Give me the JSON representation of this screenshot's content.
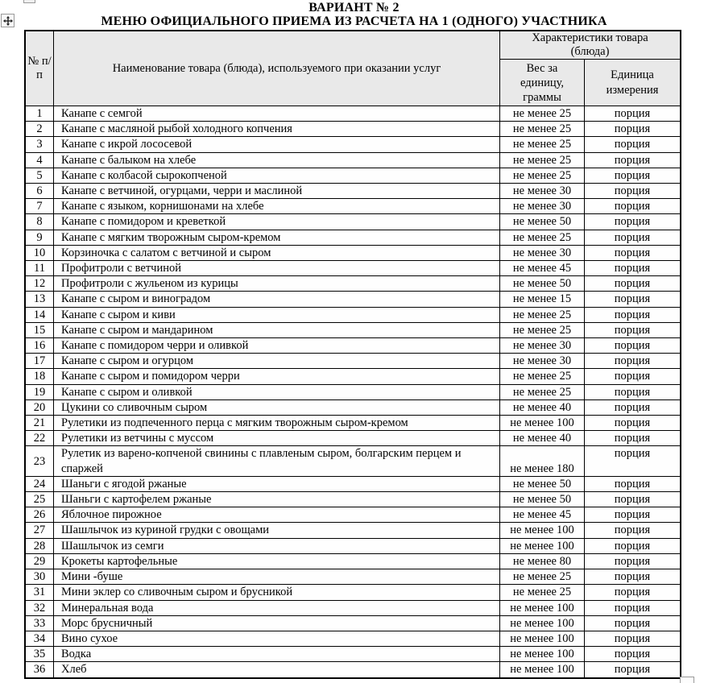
{
  "doc": {
    "title_line1": "ВАРИАНТ № 2",
    "title_line2": "МЕНЮ ОФИЦИАЛЬНОГО ПРИЕМА ИЗ РАСЧЕТА НА 1 (ОДНОГО) УЧАСТНИКА"
  },
  "icons": {
    "move_handle": "four-way-move-arrow",
    "resize_handle": "small-square"
  },
  "colors": {
    "header_bg": "#e9e9e9",
    "cell_bg": "#fefefe",
    "border": "#000000",
    "handle_border": "#999999",
    "text": "#000000",
    "page_bg": "#ffffff"
  },
  "table": {
    "header": {
      "number": "№ п/п",
      "name": "Наименование товара (блюда), используемого при оказании услуг",
      "group": "Характеристики товара (блюда)",
      "weight": "Вес за единицу, граммы",
      "unit": "Единица измерения"
    },
    "rows": [
      {
        "num": "1",
        "name": "Канапе с семгой",
        "weight": "не менее 25",
        "unit": "порция"
      },
      {
        "num": "2",
        "name": "Канапе с масляной рыбой холодного копчения",
        "weight": "не менее 25",
        "unit": "порция"
      },
      {
        "num": "3",
        "name": "Канапе с икрой лососевой",
        "weight": "не менее 25",
        "unit": "порция"
      },
      {
        "num": "4",
        "name": "Канапе с балыком на хлебе",
        "weight": "не менее 25",
        "unit": "порция"
      },
      {
        "num": "5",
        "name": "Канапе с колбасой сырокопченой",
        "weight": "не менее 25",
        "unit": "порция"
      },
      {
        "num": "6",
        "name": "Канапе с ветчиной, огурцами, черри и маслиной",
        "weight": "не менее 30",
        "unit": "порция"
      },
      {
        "num": "7",
        "name": "Канапе с языком, корнишонами на хлебе",
        "weight": "не менее 30",
        "unit": "порция"
      },
      {
        "num": "8",
        "name": "Канапе с помидором и креветкой",
        "weight": "не менее 50",
        "unit": "порция"
      },
      {
        "num": "9",
        "name": "Канапе с мягким творожным сыром-кремом",
        "weight": "не менее 25",
        "unit": "порция"
      },
      {
        "num": "10",
        "name": "Корзиночка с салатом с ветчиной и сыром",
        "weight": "не менее 30",
        "unit": "порция"
      },
      {
        "num": "11",
        "name": "Профитроли с ветчиной",
        "weight": "не менее 45",
        "unit": "порция"
      },
      {
        "num": "12",
        "name": "Профитроли с жульеном из курицы",
        "weight": "не менее 50",
        "unit": "порция"
      },
      {
        "num": "13",
        "name": "Канапе с сыром и виноградом",
        "weight": "не менее 15",
        "unit": "порция"
      },
      {
        "num": "14",
        "name": "Канапе с сыром и киви",
        "weight": "не менее 25",
        "unit": "порция"
      },
      {
        "num": "15",
        "name": "Канапе с сыром и мандарином",
        "weight": "не менее 25",
        "unit": "порция"
      },
      {
        "num": "16",
        "name": "Канапе с помидором черри и оливкой",
        "weight": "не менее 30",
        "unit": "порция"
      },
      {
        "num": "17",
        "name": "Канапе с сыром и огурцом",
        "weight": "не менее 30",
        "unit": "порция"
      },
      {
        "num": "18",
        "name": "Канапе с сыром и помидором черри",
        "weight": "не менее 25",
        "unit": "порция"
      },
      {
        "num": "19",
        "name": "Канапе с сыром и оливкой",
        "weight": "не менее 25",
        "unit": "порция"
      },
      {
        "num": "20",
        "name": "Цукини со сливочным сыром",
        "weight": "не менее 40",
        "unit": "порция"
      },
      {
        "num": "21",
        "name": "Рулетики из подпеченного перца с мягким творожным сыром-кремом",
        "weight": "не менее 100",
        "unit": "порция"
      },
      {
        "num": "22",
        "name": "Рулетики из ветчины с муссом",
        "weight": "не менее 40",
        "unit": "порция"
      },
      {
        "num": "23",
        "name": "Рулетик из варено-копченой свинины с плавленым сыром, болгарским перцем и спаржей",
        "weight": "не менее 180",
        "unit": "порция"
      },
      {
        "num": "24",
        "name": "Шаньги с ягодой ржаные",
        "weight": "не менее 50",
        "unit": "порция"
      },
      {
        "num": "25",
        "name": "Шаньги с картофелем ржаные",
        "weight": "не менее 50",
        "unit": "порция"
      },
      {
        "num": "26",
        "name": "Яблочное пирожное",
        "weight": "не менее 45",
        "unit": "порция"
      },
      {
        "num": "27",
        "name": "Шашлычок из куриной грудки с овощами",
        "weight": "не менее 100",
        "unit": "порция"
      },
      {
        "num": "28",
        "name": "Шашлычок из семги",
        "weight": "не менее 100",
        "unit": "порция"
      },
      {
        "num": "29",
        "name": "Крокеты картофельные",
        "weight": "не менее 80",
        "unit": "порция"
      },
      {
        "num": "30",
        "name": "Мини -буше",
        "weight": "не менее 25",
        "unit": "порция"
      },
      {
        "num": "31",
        "name": "Мини эклер со сливочным сыром и брусникой",
        "weight": "не менее 25",
        "unit": "порция"
      },
      {
        "num": "32",
        "name": "Минеральная вода",
        "weight": "не менее 100",
        "unit": "порция"
      },
      {
        "num": "33",
        "name": "Морс брусничный",
        "weight": "не менее 100",
        "unit": "порция"
      },
      {
        "num": "34",
        "name": "Вино сухое",
        "weight": "не менее 100",
        "unit": "порция"
      },
      {
        "num": "35",
        "name": "Водка",
        "weight": "не менее 100",
        "unit": "порция"
      },
      {
        "num": "36",
        "name": "Хлеб",
        "weight": "не менее 100",
        "unit": "порция"
      }
    ]
  }
}
